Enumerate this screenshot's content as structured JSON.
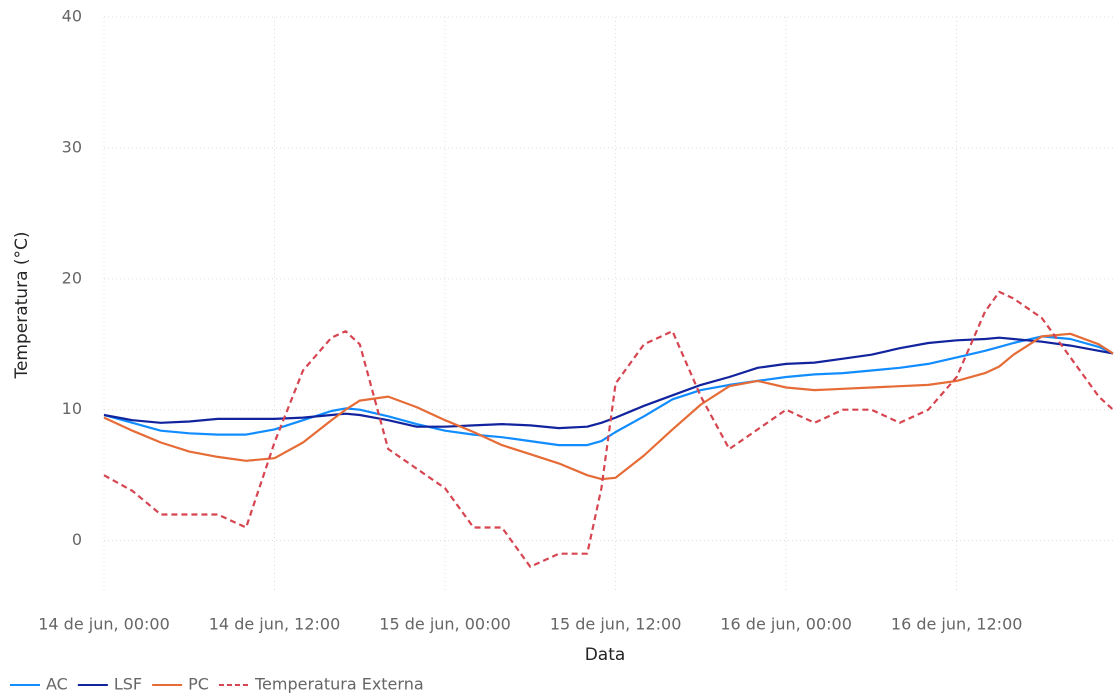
{
  "chart_data": {
    "type": "line",
    "x_label": "Data",
    "y_label": "Temperatura (°C)",
    "x": [
      0,
      2,
      4,
      6,
      8,
      10,
      12,
      14,
      16,
      17,
      18,
      20,
      22,
      24,
      26,
      28,
      30,
      32,
      34,
      35,
      36,
      38,
      40,
      42,
      44,
      46,
      48,
      50,
      52,
      54,
      56,
      58,
      60,
      62,
      63,
      64,
      66,
      68,
      70,
      71
    ],
    "series": [
      {
        "name": "AC",
        "color": "#118DFF",
        "line_style": "solid",
        "values": [
          9.6,
          9,
          8.4,
          8.2,
          8.1,
          8.1,
          8.5,
          9.2,
          9.9,
          10.1,
          10,
          9.5,
          8.9,
          8.4,
          8.1,
          7.9,
          7.6,
          7.3,
          7.3,
          7.6,
          8.3,
          9.5,
          10.8,
          11.5,
          11.9,
          12.2,
          12.5,
          12.7,
          12.8,
          13,
          13.2,
          13.5,
          14,
          14.5,
          14.8,
          15.1,
          15.6,
          15.4,
          14.8,
          14.3
        ]
      },
      {
        "name": "LSF",
        "color": "#12239E",
        "line_style": "solid",
        "values": [
          9.6,
          9.2,
          9,
          9.1,
          9.3,
          9.3,
          9.3,
          9.4,
          9.6,
          9.7,
          9.6,
          9.2,
          8.7,
          8.7,
          8.8,
          8.9,
          8.8,
          8.6,
          8.7,
          9,
          9.4,
          10.3,
          11.1,
          11.9,
          12.5,
          13.2,
          13.5,
          13.6,
          13.9,
          14.2,
          14.7,
          15.1,
          15.3,
          15.4,
          15.5,
          15.4,
          15.2,
          14.9,
          14.5,
          14.3
        ]
      },
      {
        "name": "PC",
        "color": "#E66C37",
        "line_style": "solid",
        "values": [
          9.4,
          8.4,
          7.5,
          6.8,
          6.4,
          6.1,
          6.3,
          7.5,
          9.2,
          10,
          10.7,
          11,
          10.2,
          9.2,
          8.3,
          7.3,
          6.6,
          5.9,
          5,
          4.7,
          4.8,
          6.5,
          8.5,
          10.4,
          11.8,
          12.2,
          11.7,
          11.5,
          11.6,
          11.7,
          11.8,
          11.9,
          12.2,
          12.8,
          13.3,
          14.2,
          15.6,
          15.8,
          15,
          14.3
        ]
      },
      {
        "name": "Temperatura Externa",
        "color": "#D64550",
        "line_style": "dashed",
        "values": [
          5,
          3.8,
          2,
          2,
          2,
          1,
          7.5,
          13,
          15.5,
          16,
          15,
          7,
          5.5,
          4,
          1,
          1,
          -2,
          -1,
          -1,
          4,
          12,
          15,
          16,
          11,
          7,
          8.5,
          10,
          9,
          10,
          10,
          9,
          10,
          12.5,
          17.5,
          19,
          18.5,
          17,
          14,
          11,
          10
        ]
      }
    ],
    "xlim": [
      0,
      71
    ],
    "xticks": [
      {
        "value": 0,
        "label": "14 de jun, 00:00"
      },
      {
        "value": 12,
        "label": "14 de jun, 12:00"
      },
      {
        "value": 24,
        "label": "15 de jun, 00:00"
      },
      {
        "value": 36,
        "label": "15 de jun, 12:00"
      },
      {
        "value": 48,
        "label": "16 de jun, 00:00"
      },
      {
        "value": 60,
        "label": "16 de jun, 12:00"
      }
    ],
    "ylim": [
      -4,
      40
    ],
    "yticks": [
      0,
      10,
      20,
      30,
      40
    ],
    "grid": true,
    "legend": "bottom-left"
  }
}
